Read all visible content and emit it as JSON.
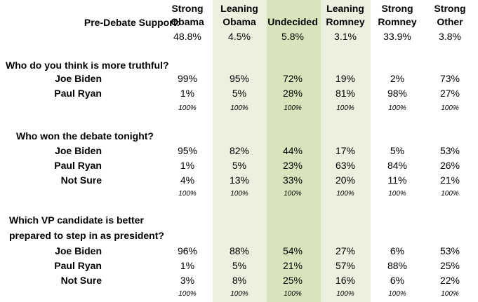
{
  "header": {
    "label": "Pre-Debate Support:",
    "columns": [
      {
        "line1": "Strong",
        "line2": "Obama",
        "value": "48.8%"
      },
      {
        "line1": "Leaning",
        "line2": "Obama",
        "value": "4.5%"
      },
      {
        "line1": "",
        "line2": "Undecided",
        "value": "5.8%"
      },
      {
        "line1": "Leaning",
        "line2": "Romney",
        "value": "3.1%"
      },
      {
        "line1": "Strong",
        "line2": "Romney",
        "value": "33.9%"
      },
      {
        "line1": "Strong",
        "line2": "Other",
        "value": "3.8%"
      }
    ]
  },
  "column_shading": {
    "leaning": "#ebf1de",
    "undecided": "#d7e4bc"
  },
  "sections": [
    {
      "question_lines": [
        "Who do you think is more truthful?"
      ],
      "rows": [
        {
          "label": "Joe Biden",
          "values": [
            "99%",
            "95%",
            "72%",
            "19%",
            "2%",
            "73%"
          ]
        },
        {
          "label": "Paul Ryan",
          "values": [
            "1%",
            "5%",
            "28%",
            "81%",
            "98%",
            "27%"
          ]
        }
      ],
      "totals": [
        "100%",
        "100%",
        "100%",
        "100%",
        "100%",
        "100%"
      ]
    },
    {
      "question_lines": [
        "Who won the debate tonight?"
      ],
      "rows": [
        {
          "label": "Joe Biden",
          "values": [
            "95%",
            "82%",
            "44%",
            "17%",
            "5%",
            "53%"
          ]
        },
        {
          "label": "Paul Ryan",
          "values": [
            "1%",
            "5%",
            "23%",
            "63%",
            "84%",
            "26%"
          ]
        },
        {
          "label": "Not Sure",
          "values": [
            "4%",
            "13%",
            "33%",
            "20%",
            "11%",
            "21%"
          ]
        }
      ],
      "totals": [
        "100%",
        "100%",
        "100%",
        "100%",
        "100%",
        "100%"
      ]
    },
    {
      "question_lines": [
        "Which VP candidate is better",
        "prepared to step in as president?"
      ],
      "rows": [
        {
          "label": "Joe Biden",
          "values": [
            "96%",
            "88%",
            "54%",
            "27%",
            "6%",
            "53%"
          ]
        },
        {
          "label": "Paul Ryan",
          "values": [
            "1%",
            "5%",
            "21%",
            "57%",
            "88%",
            "25%"
          ]
        },
        {
          "label": "Not Sure",
          "values": [
            "3%",
            "8%",
            "25%",
            "16%",
            "6%",
            "22%"
          ]
        }
      ],
      "totals": [
        "100%",
        "100%",
        "100%",
        "100%",
        "100%",
        "100%"
      ]
    }
  ]
}
